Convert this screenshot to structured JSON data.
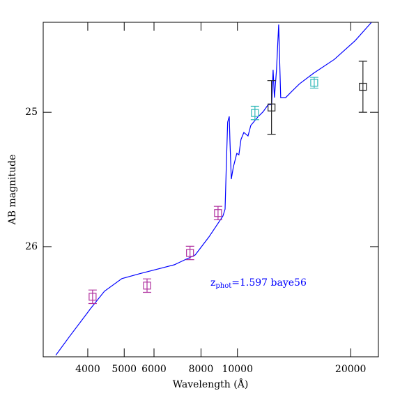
{
  "chart_data": {
    "type": "sed",
    "xlabel": "Wavelength (Å)",
    "ylabel": "AB magnitude",
    "annotation": {
      "text": "z",
      "sub": "phot",
      "rest": "=1.597 baye56",
      "color": "#0000ff"
    },
    "xscale": "log",
    "xlim": [
      3045,
      23700
    ],
    "xticks": [
      4000,
      5000,
      6000,
      8000,
      10000,
      20000
    ],
    "ylim": [
      26.82,
      24.33
    ],
    "yticks": [
      25,
      26
    ],
    "model": {
      "color": "#0000ff",
      "x": [
        3290,
        3580,
        4070,
        4430,
        4930,
        5480,
        6790,
        7720,
        8400,
        9150,
        9270,
        9340,
        9420,
        9510,
        9550,
        9630,
        9750,
        9960,
        10090,
        10220,
        10400,
        10670,
        10850,
        11320,
        11710,
        12070,
        12330,
        12440,
        12540,
        12700,
        12870,
        13030,
        13430,
        14010,
        14620,
        15920,
        18100,
        20570,
        22690
      ],
      "values": [
        26.808,
        26.668,
        26.461,
        26.332,
        26.238,
        26.202,
        26.135,
        26.062,
        25.927,
        25.772,
        25.72,
        25.409,
        25.073,
        25.031,
        25.202,
        25.497,
        25.409,
        25.306,
        25.316,
        25.202,
        25.15,
        25.176,
        25.098,
        25.036,
        24.995,
        24.943,
        24.943,
        24.684,
        24.891,
        24.684,
        24.347,
        24.891,
        24.891,
        24.839,
        24.788,
        24.71,
        24.606,
        24.466,
        24.332
      ]
    },
    "series": [
      {
        "color": "#b0309f",
        "x": [
          4120,
          5750,
          7480,
          8880
        ],
        "values": [
          26.373,
          26.29,
          26.047,
          25.75
        ],
        "errors": [
          0.05,
          0.05,
          0.05,
          0.05
        ]
      },
      {
        "color": "#30b8b8",
        "x": [
          11130,
          16000
        ],
        "values": [
          25.005,
          24.78
        ],
        "errors": [
          0.05,
          0.04
        ]
      },
      {
        "color": "#222222",
        "x": [
          12320,
          21560
        ],
        "values": [
          24.964,
          24.81
        ],
        "errors": [
          0.2,
          0.19
        ]
      }
    ]
  }
}
